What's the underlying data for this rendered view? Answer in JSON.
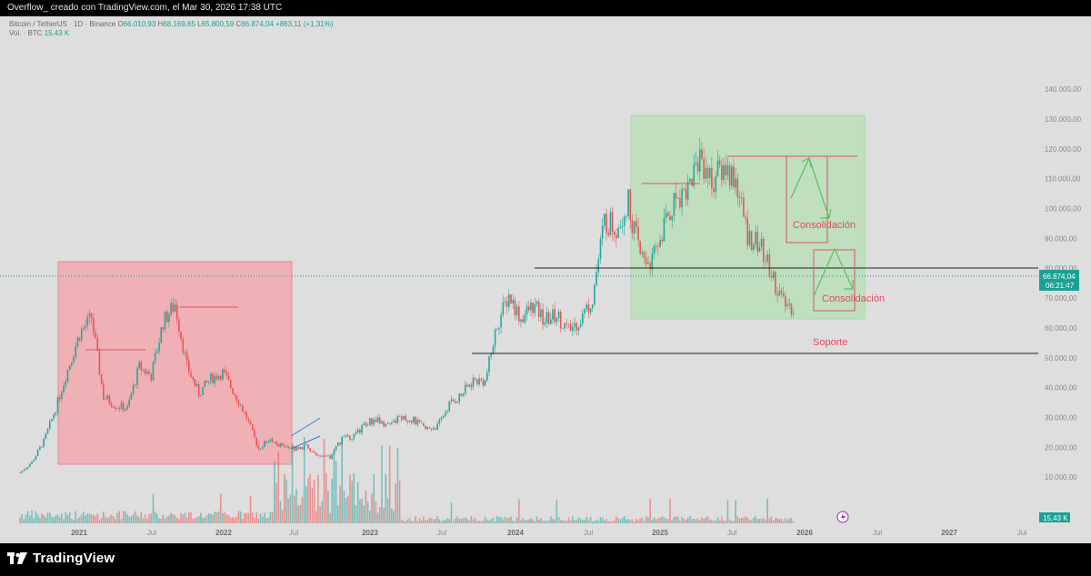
{
  "header": {
    "title": "Overflow_ creado con TradingView.com, el Mar 30, 2026 17:38 UTC"
  },
  "legend": {
    "symbol": "Bitcoin / TetherUS · 1D · Binance",
    "open_label": "O",
    "open": "66.010,93",
    "high_label": "H",
    "high": "68.169,65",
    "low_label": "L",
    "low": "65.800,59",
    "close_label": "C",
    "close": "66.874,04",
    "change": "+863,11 (+1,31%)",
    "vol_label": "Vol. · BTC",
    "vol": "15,43 K"
  },
  "price_tag": {
    "price": "66.874,04",
    "timer": "06:21:47"
  },
  "volume_tag": "15,43 K",
  "annotations": {
    "consolidation_1": "Consolidación",
    "consolidation_2": "Consolidación",
    "support": "Soporte"
  },
  "colors": {
    "up": "#26a69a",
    "down": "#ef5350",
    "bg": "#dedede",
    "red_zone": "#f4a0a8",
    "green_zone": "#b6dfb6",
    "accent": "#1aa193",
    "annotation": "#e64a5a"
  },
  "branding": "TradingView",
  "chart_data": {
    "type": "candlestick",
    "title": "Bitcoin / TetherUS · 1D · Binance",
    "xlabel": "",
    "ylabel": "",
    "ylim": [
      0,
      140000
    ],
    "yticks": [
      "10.000,00",
      "20.000,00",
      "30.000,00",
      "40.000,00",
      "50.000,00",
      "60.000,00",
      "70.000,00",
      "80.000,00",
      "90.000,00",
      "100.000,00",
      "110.000,00",
      "120.000,00",
      "130.000,00",
      "140.000,00"
    ],
    "xticks": [
      "2021",
      "Jul",
      "2022",
      "Jul",
      "2023",
      "Jul",
      "2024",
      "Jul",
      "2025",
      "Jul",
      "2026",
      "Jul",
      "2027",
      "Jul"
    ],
    "xticks_bold": [
      "2021",
      "2022",
      "2023",
      "2024",
      "2025",
      "2026",
      "2027"
    ],
    "grid": false,
    "price_path": [
      [
        "2020-10",
        11500
      ],
      [
        "2020-11",
        15000
      ],
      [
        "2020-12",
        22000
      ],
      [
        "2021-01",
        33000
      ],
      [
        "2021-02",
        46000
      ],
      [
        "2021-03",
        58000
      ],
      [
        "2021-04",
        63500
      ],
      [
        "2021-05",
        37000
      ],
      [
        "2021-06",
        34000
      ],
      [
        "2021-07",
        33000
      ],
      [
        "2021-08",
        47000
      ],
      [
        "2021-09",
        44000
      ],
      [
        "2021-10",
        62000
      ],
      [
        "2021-11",
        68000
      ],
      [
        "2021-12",
        47000
      ],
      [
        "2022-01",
        38000
      ],
      [
        "2022-02",
        43000
      ],
      [
        "2022-03",
        45000
      ],
      [
        "2022-04",
        38000
      ],
      [
        "2022-05",
        30000
      ],
      [
        "2022-06",
        19500
      ],
      [
        "2022-07",
        23000
      ],
      [
        "2022-08",
        20000
      ],
      [
        "2022-09",
        19500
      ],
      [
        "2022-10",
        20500
      ],
      [
        "2022-11",
        16500
      ],
      [
        "2022-12",
        16600
      ],
      [
        "2023-01",
        23000
      ],
      [
        "2023-02",
        23500
      ],
      [
        "2023-03",
        28000
      ],
      [
        "2023-04",
        29500
      ],
      [
        "2023-05",
        27000
      ],
      [
        "2023-06",
        30500
      ],
      [
        "2023-07",
        29000
      ],
      [
        "2023-08",
        26000
      ],
      [
        "2023-09",
        27000
      ],
      [
        "2023-10",
        34500
      ],
      [
        "2023-11",
        37500
      ],
      [
        "2023-12",
        42500
      ],
      [
        "2024-01",
        42000
      ],
      [
        "2024-02",
        61000
      ],
      [
        "2024-03",
        71000
      ],
      [
        "2024-04",
        63000
      ],
      [
        "2024-05",
        67500
      ],
      [
        "2024-06",
        62500
      ],
      [
        "2024-07",
        64500
      ],
      [
        "2024-08",
        59000
      ],
      [
        "2024-09",
        63000
      ],
      [
        "2024-10",
        70000
      ],
      [
        "2024-11",
        96000
      ],
      [
        "2024-12",
        94000
      ],
      [
        "2025-01",
        102000
      ],
      [
        "2025-02",
        84000
      ],
      [
        "2025-03",
        82000
      ],
      [
        "2025-04",
        94000
      ],
      [
        "2025-05",
        104000
      ],
      [
        "2025-06",
        107000
      ],
      [
        "2025-07",
        118000
      ],
      [
        "2025-08",
        109000
      ],
      [
        "2025-09",
        114000
      ],
      [
        "2025-10",
        110000
      ],
      [
        "2025-11",
        91000
      ],
      [
        "2025-12",
        88000
      ],
      [
        "2026-01",
        78000
      ],
      [
        "2026-02",
        68000
      ],
      [
        "2026-03",
        66874
      ]
    ]
  }
}
